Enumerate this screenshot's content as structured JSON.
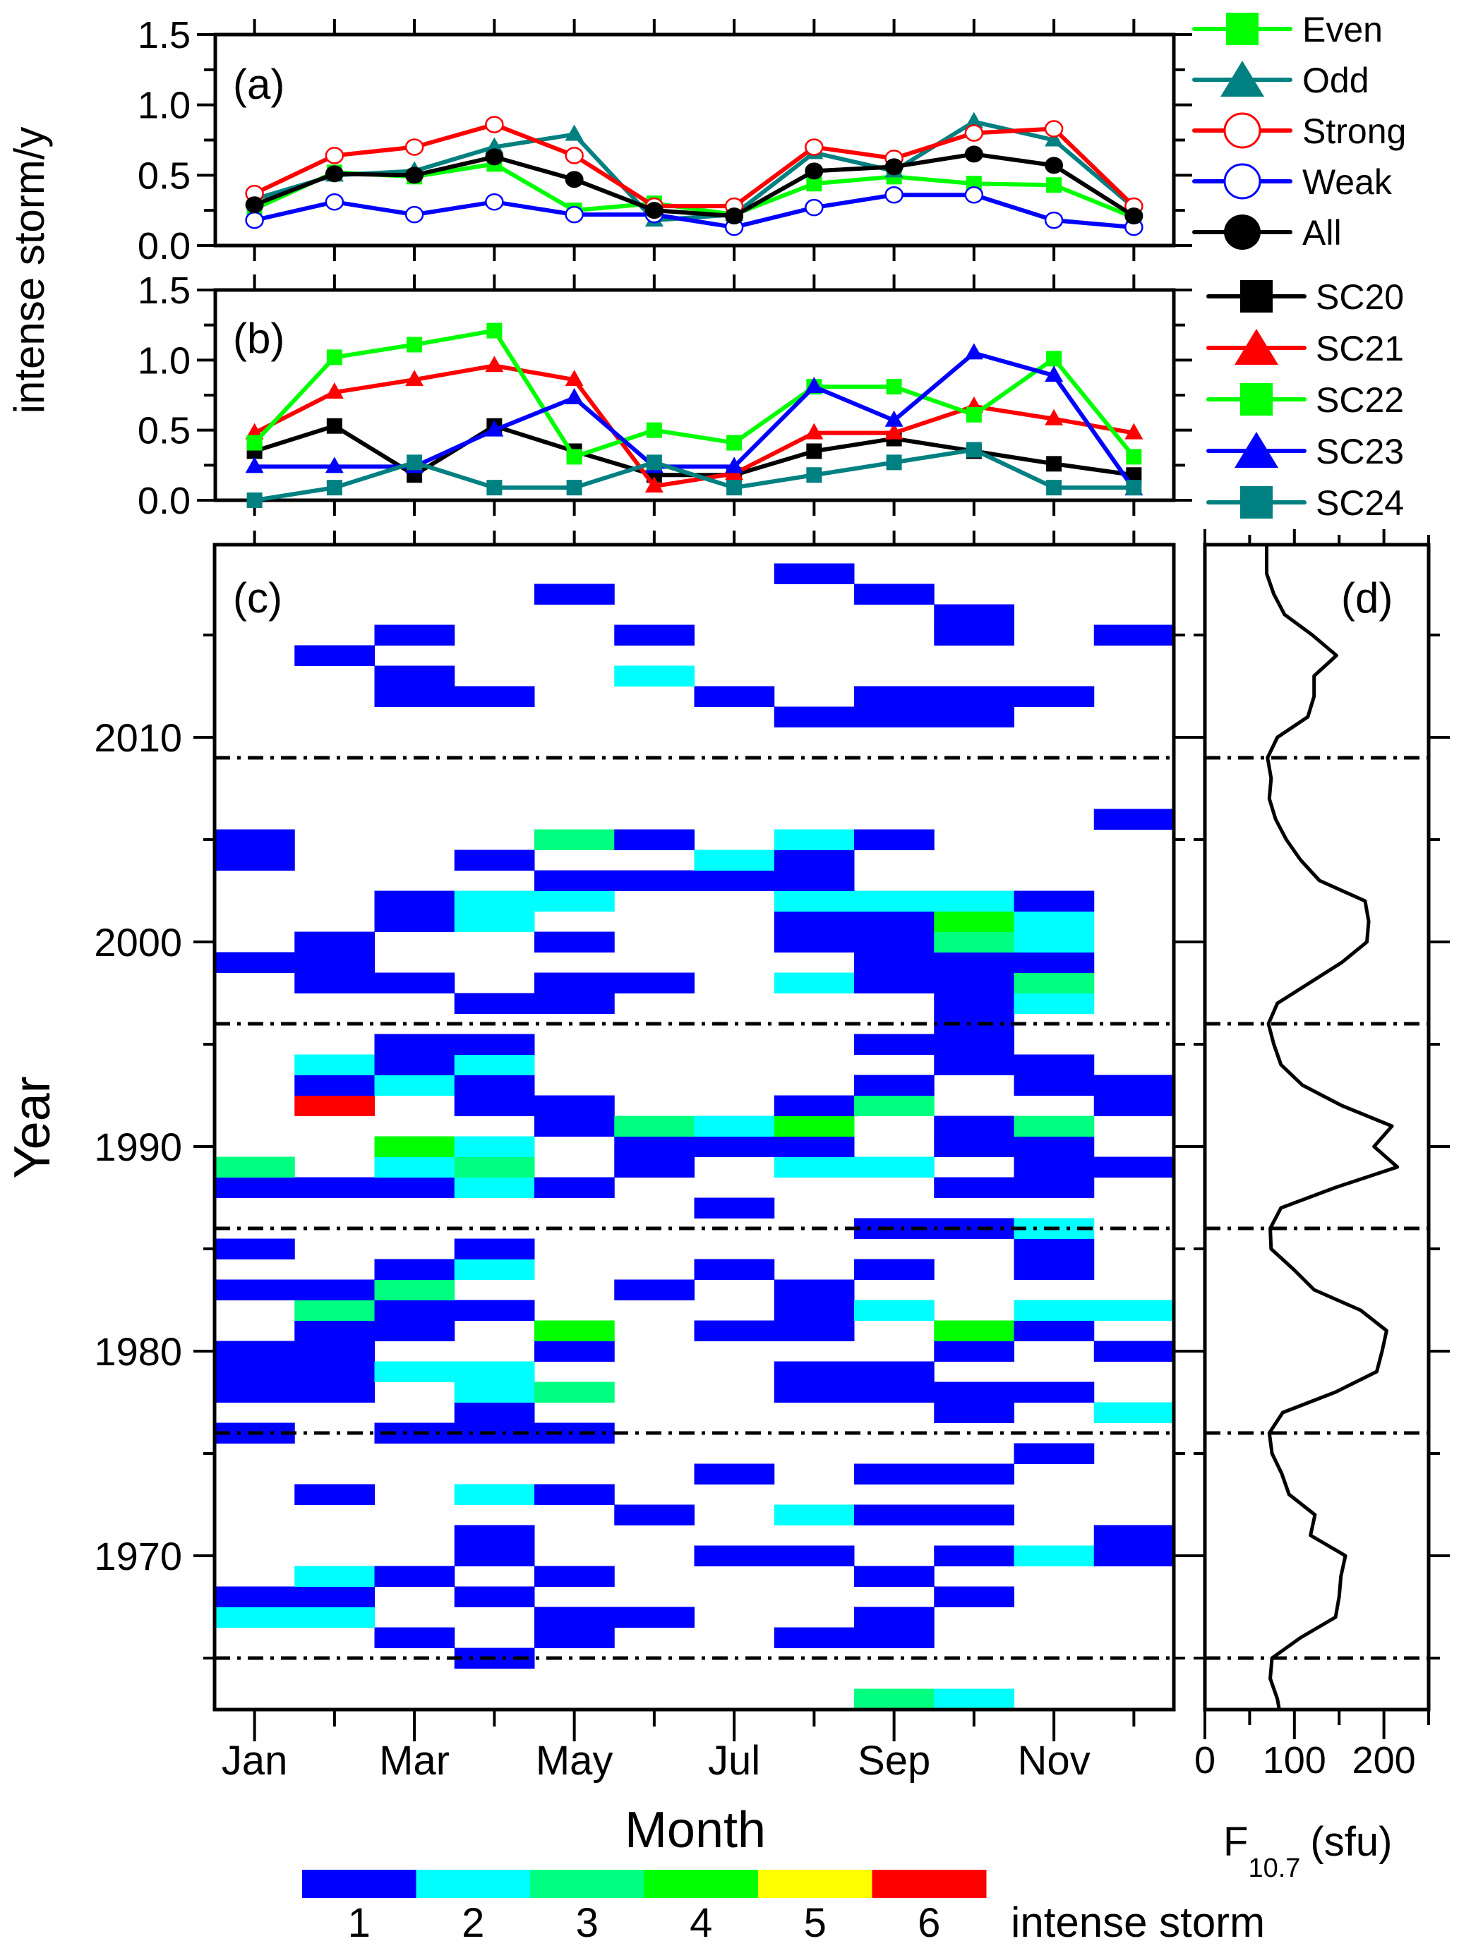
{
  "chart_data": [
    {
      "panel": "(a)",
      "type": "line",
      "ylabel": "intense storm/y",
      "ylim": [
        0,
        1.5
      ],
      "yticks": [
        "0.0",
        "0.5",
        "1.0",
        "1.5"
      ],
      "categories": [
        "Jan",
        "Feb",
        "Mar",
        "Apr",
        "May",
        "Jun",
        "Jul",
        "Aug",
        "Sep",
        "Oct",
        "Nov",
        "Dec"
      ],
      "legend_position": "right",
      "series": [
        {
          "name": "Even",
          "color": "#00ff00",
          "marker": "square-filled",
          "values": [
            0.26,
            0.52,
            0.49,
            0.58,
            0.25,
            0.3,
            0.22,
            0.44,
            0.49,
            0.44,
            0.43,
            0.2
          ]
        },
        {
          "name": "Odd",
          "color": "#008080",
          "marker": "triangle-filled",
          "values": [
            0.33,
            0.5,
            0.53,
            0.7,
            0.79,
            0.18,
            0.22,
            0.66,
            0.53,
            0.88,
            0.75,
            0.27
          ]
        },
        {
          "name": "Strong",
          "color": "#ff0000",
          "marker": "circle-open",
          "values": [
            0.37,
            0.64,
            0.7,
            0.86,
            0.64,
            0.28,
            0.28,
            0.7,
            0.62,
            0.8,
            0.83,
            0.28
          ]
        },
        {
          "name": "Weak",
          "color": "#0000ff",
          "marker": "circle-open",
          "values": [
            0.18,
            0.31,
            0.22,
            0.31,
            0.22,
            0.22,
            0.13,
            0.27,
            0.36,
            0.36,
            0.18,
            0.13
          ]
        },
        {
          "name": "All",
          "color": "#000000",
          "marker": "circle-filled",
          "values": [
            0.29,
            0.51,
            0.5,
            0.63,
            0.47,
            0.25,
            0.21,
            0.53,
            0.56,
            0.65,
            0.57,
            0.21
          ]
        }
      ]
    },
    {
      "panel": "(b)",
      "type": "line",
      "ylabel": "intense storm/y",
      "ylim": [
        0,
        1.5
      ],
      "yticks": [
        "0.0",
        "0.5",
        "1.0",
        "1.5"
      ],
      "categories": [
        "Jan",
        "Feb",
        "Mar",
        "Apr",
        "May",
        "Jun",
        "Jul",
        "Aug",
        "Sep",
        "Oct",
        "Nov",
        "Dec"
      ],
      "legend_position": "right",
      "series": [
        {
          "name": "SC20",
          "color": "#000000",
          "marker": "square-filled",
          "values": [
            0.35,
            0.53,
            0.18,
            0.53,
            0.35,
            0.18,
            0.18,
            0.35,
            0.44,
            0.35,
            0.26,
            0.18
          ]
        },
        {
          "name": "SC21",
          "color": "#ff0000",
          "marker": "triangle-filled",
          "values": [
            0.48,
            0.77,
            0.86,
            0.96,
            0.86,
            0.1,
            0.19,
            0.48,
            0.48,
            0.67,
            0.58,
            0.48
          ]
        },
        {
          "name": "SC22",
          "color": "#00ff00",
          "marker": "square-filled",
          "values": [
            0.41,
            1.02,
            1.11,
            1.21,
            0.31,
            0.5,
            0.41,
            0.81,
            0.81,
            0.61,
            1.01,
            0.31
          ]
        },
        {
          "name": "SC23",
          "color": "#0000ff",
          "marker": "triangle-filled",
          "values": [
            0.24,
            0.24,
            0.24,
            0.5,
            0.73,
            0.24,
            0.24,
            0.81,
            0.57,
            1.05,
            0.89,
            0.08
          ]
        },
        {
          "name": "SC24",
          "color": "#008080",
          "marker": "square-filled",
          "values": [
            0.0,
            0.09,
            0.27,
            0.09,
            0.09,
            0.27,
            0.09,
            0.18,
            0.27,
            0.36,
            0.09,
            0.09
          ]
        }
      ]
    },
    {
      "panel": "(c)",
      "type": "heatmap",
      "xlabel": "Month",
      "ylabel": "Year",
      "xticks": [
        "Jan",
        "Mar",
        "May",
        "Jul",
        "Sep",
        "Nov"
      ],
      "yticks": [
        "1970",
        "1980",
        "1990",
        "2000",
        "2010"
      ],
      "ylim": [
        1962.5,
        2019.4
      ],
      "months": [
        "Jan",
        "Feb",
        "Mar",
        "Apr",
        "May",
        "Jun",
        "Jul",
        "Aug",
        "Sep",
        "Oct",
        "Nov",
        "Dec"
      ],
      "cycle_minima_lines": [
        1965,
        1976,
        1986,
        1996,
        2009
      ],
      "colorbar": {
        "label": "intense storm",
        "levels": [
          "1",
          "2",
          "3",
          "4",
          "5",
          "6"
        ],
        "colors": [
          "#0000ff",
          "#00ffff",
          "#00ff80",
          "#00ff00",
          "#ffff00",
          "#ff0000"
        ]
      },
      "cells": {
        "2018": {
          "Aug": 1
        },
        "2017": {
          "May": 1,
          "Sep": 1
        },
        "2016": {
          "Oct": 1
        },
        "2015": {
          "Mar": 1,
          "Jun": 1,
          "Oct": 1,
          "Dec": 1
        },
        "2014": {
          "Feb": 1
        },
        "2013": {
          "Mar": 1,
          "Jun": 2
        },
        "2012": {
          "Mar": 1,
          "Apr": 1,
          "Jul": 1,
          "Sep": 1,
          "Oct": 1,
          "Nov": 1
        },
        "2011": {
          "Aug": 1,
          "Sep": 1,
          "Oct": 1
        },
        "2006": {
          "Dec": 1
        },
        "2005": {
          "Jan": 1,
          "May": 3,
          "Jun": 1,
          "Aug": 2,
          "Sep": 1
        },
        "2004": {
          "Jan": 1,
          "Apr": 1,
          "Jul": 2,
          "Aug": 1
        },
        "2003": {
          "May": 1,
          "Jun": 1,
          "Jul": 1,
          "Aug": 1
        },
        "2002": {
          "Mar": 1,
          "Apr": 2,
          "May": 2,
          "Aug": 2,
          "Sep": 2,
          "Oct": 2,
          "Nov": 1
        },
        "2001": {
          "Mar": 1,
          "Apr": 2,
          "Aug": 1,
          "Sep": 1,
          "Oct": 4,
          "Nov": 2
        },
        "2000": {
          "Feb": 1,
          "May": 1,
          "Aug": 1,
          "Sep": 1,
          "Oct": 3,
          "Nov": 2
        },
        "1999": {
          "Jan": 1,
          "Feb": 1,
          "Sep": 1,
          "Oct": 1,
          "Nov": 1
        },
        "1998": {
          "Feb": 1,
          "Mar": 1,
          "May": 1,
          "Jun": 1,
          "Aug": 2,
          "Sep": 1,
          "Oct": 1,
          "Nov": 3
        },
        "1997": {
          "Apr": 1,
          "May": 1,
          "Oct": 1,
          "Nov": 2
        },
        "1996": {
          "Oct": 1
        },
        "1995": {
          "Mar": 1,
          "Apr": 1,
          "Sep": 1,
          "Oct": 1
        },
        "1994": {
          "Feb": 2,
          "Mar": 1,
          "Apr": 2,
          "Oct": 1,
          "Nov": 1
        },
        "1993": {
          "Feb": 1,
          "Mar": 2,
          "Apr": 1,
          "Sep": 1,
          "Nov": 1,
          "Dec": 1
        },
        "1992": {
          "Feb": 6,
          "Apr": 1,
          "May": 1,
          "Aug": 1,
          "Sep": 3,
          "Dec": 1
        },
        "1991": {
          "May": 1,
          "Jun": 3,
          "Jul": 2,
          "Aug": 4,
          "Oct": 1,
          "Nov": 3
        },
        "1990": {
          "Mar": 4,
          "Apr": 2,
          "Jun": 1,
          "Jul": 1,
          "Aug": 1,
          "Oct": 1,
          "Nov": 1
        },
        "1989": {
          "Jan": 3,
          "Mar": 2,
          "Apr": 3,
          "Jun": 1,
          "Aug": 2,
          "Sep": 2,
          "Nov": 1,
          "Dec": 1
        },
        "1988": {
          "Jan": 1,
          "Feb": 1,
          "Mar": 1,
          "Apr": 2,
          "May": 1,
          "Oct": 1,
          "Nov": 1
        },
        "1987": {
          "Jul": 1
        },
        "1986": {
          "Sep": 1,
          "Oct": 1,
          "Nov": 2
        },
        "1985": {
          "Jan": 1,
          "Apr": 1,
          "Nov": 1
        },
        "1984": {
          "Mar": 1,
          "Apr": 2,
          "Jul": 1,
          "Sep": 1,
          "Nov": 1
        },
        "1983": {
          "Jan": 1,
          "Feb": 1,
          "Mar": 3,
          "Jun": 1,
          "Aug": 1
        },
        "1982": {
          "Feb": 3,
          "Mar": 1,
          "Apr": 1,
          "Aug": 1,
          "Sep": 2,
          "Nov": 2,
          "Dec": 2
        },
        "1981": {
          "Feb": 1,
          "Mar": 1,
          "May": 4,
          "Jul": 1,
          "Aug": 1,
          "Oct": 4,
          "Nov": 1
        },
        "1980": {
          "Jan": 1,
          "Feb": 1,
          "May": 1,
          "Oct": 1,
          "Dec": 1
        },
        "1979": {
          "Jan": 1,
          "Feb": 1,
          "Mar": 2,
          "Apr": 2,
          "Aug": 1,
          "Sep": 1
        },
        "1978": {
          "Jan": 1,
          "Feb": 1,
          "Apr": 2,
          "May": 3,
          "Aug": 1,
          "Sep": 1,
          "Oct": 1,
          "Nov": 1
        },
        "1977": {
          "Apr": 1,
          "Oct": 1,
          "Dec": 2
        },
        "1976": {
          "Jan": 1,
          "Mar": 1,
          "Apr": 1,
          "May": 1
        },
        "1975": {
          "Nov": 1
        },
        "1974": {
          "Jul": 1,
          "Sep": 1,
          "Oct": 1
        },
        "1973": {
          "Feb": 1,
          "Apr": 2,
          "May": 1
        },
        "1972": {
          "Jun": 1,
          "Aug": 2,
          "Sep": 1,
          "Oct": 1
        },
        "1971": {
          "Apr": 1,
          "Dec": 1
        },
        "1970": {
          "Apr": 1,
          "Jul": 1,
          "Aug": 1,
          "Oct": 1,
          "Nov": 2,
          "Dec": 1
        },
        "1969": {
          "Feb": 2,
          "Mar": 1,
          "May": 1,
          "Sep": 1
        },
        "1968": {
          "Jan": 1,
          "Feb": 1,
          "Apr": 1,
          "Oct": 1
        },
        "1967": {
          "Jan": 2,
          "Feb": 2,
          "May": 1,
          "Jun": 1,
          "Sep": 1
        },
        "1966": {
          "Mar": 1,
          "May": 1,
          "Aug": 1,
          "Sep": 1
        },
        "1965": {
          "Apr": 1
        },
        "1963": {
          "Sep": 3,
          "Oct": 2
        }
      }
    },
    {
      "panel": "(d)",
      "type": "line",
      "xlabel_main": "F",
      "xlabel_sub": "10.7",
      "xlabel_unit": "(sfu)",
      "xlim": [
        0,
        250
      ],
      "xticks": [
        "0",
        "100",
        "200"
      ],
      "orientation": "vertical",
      "years": [
        2019.4,
        2018,
        2017,
        2016,
        2015,
        2014,
        2013,
        2012,
        2011,
        2010,
        2009,
        2008,
        2007,
        2006,
        2005,
        2004,
        2003,
        2002,
        2001,
        2000,
        1999,
        1998,
        1997,
        1996,
        1995,
        1994,
        1993,
        1992,
        1991,
        1990,
        1989,
        1988,
        1987,
        1986,
        1985,
        1984,
        1983,
        1982,
        1981,
        1980,
        1979,
        1978,
        1977,
        1976,
        1975,
        1974,
        1973,
        1972,
        1971,
        1970,
        1969,
        1968,
        1967,
        1966,
        1965,
        1964,
        1963,
        1962.5
      ],
      "values": [
        69,
        69,
        77,
        89,
        120,
        147,
        122,
        122,
        115,
        81,
        70,
        74,
        72,
        79,
        91,
        107,
        128,
        179,
        183,
        181,
        153,
        117,
        81,
        71,
        77,
        85,
        109,
        153,
        209,
        189,
        215,
        146,
        85,
        73,
        74,
        99,
        122,
        174,
        203,
        198,
        192,
        146,
        87,
        72,
        75,
        86,
        94,
        123,
        118,
        157,
        152,
        150,
        146,
        107,
        75,
        73,
        81,
        83
      ]
    }
  ]
}
